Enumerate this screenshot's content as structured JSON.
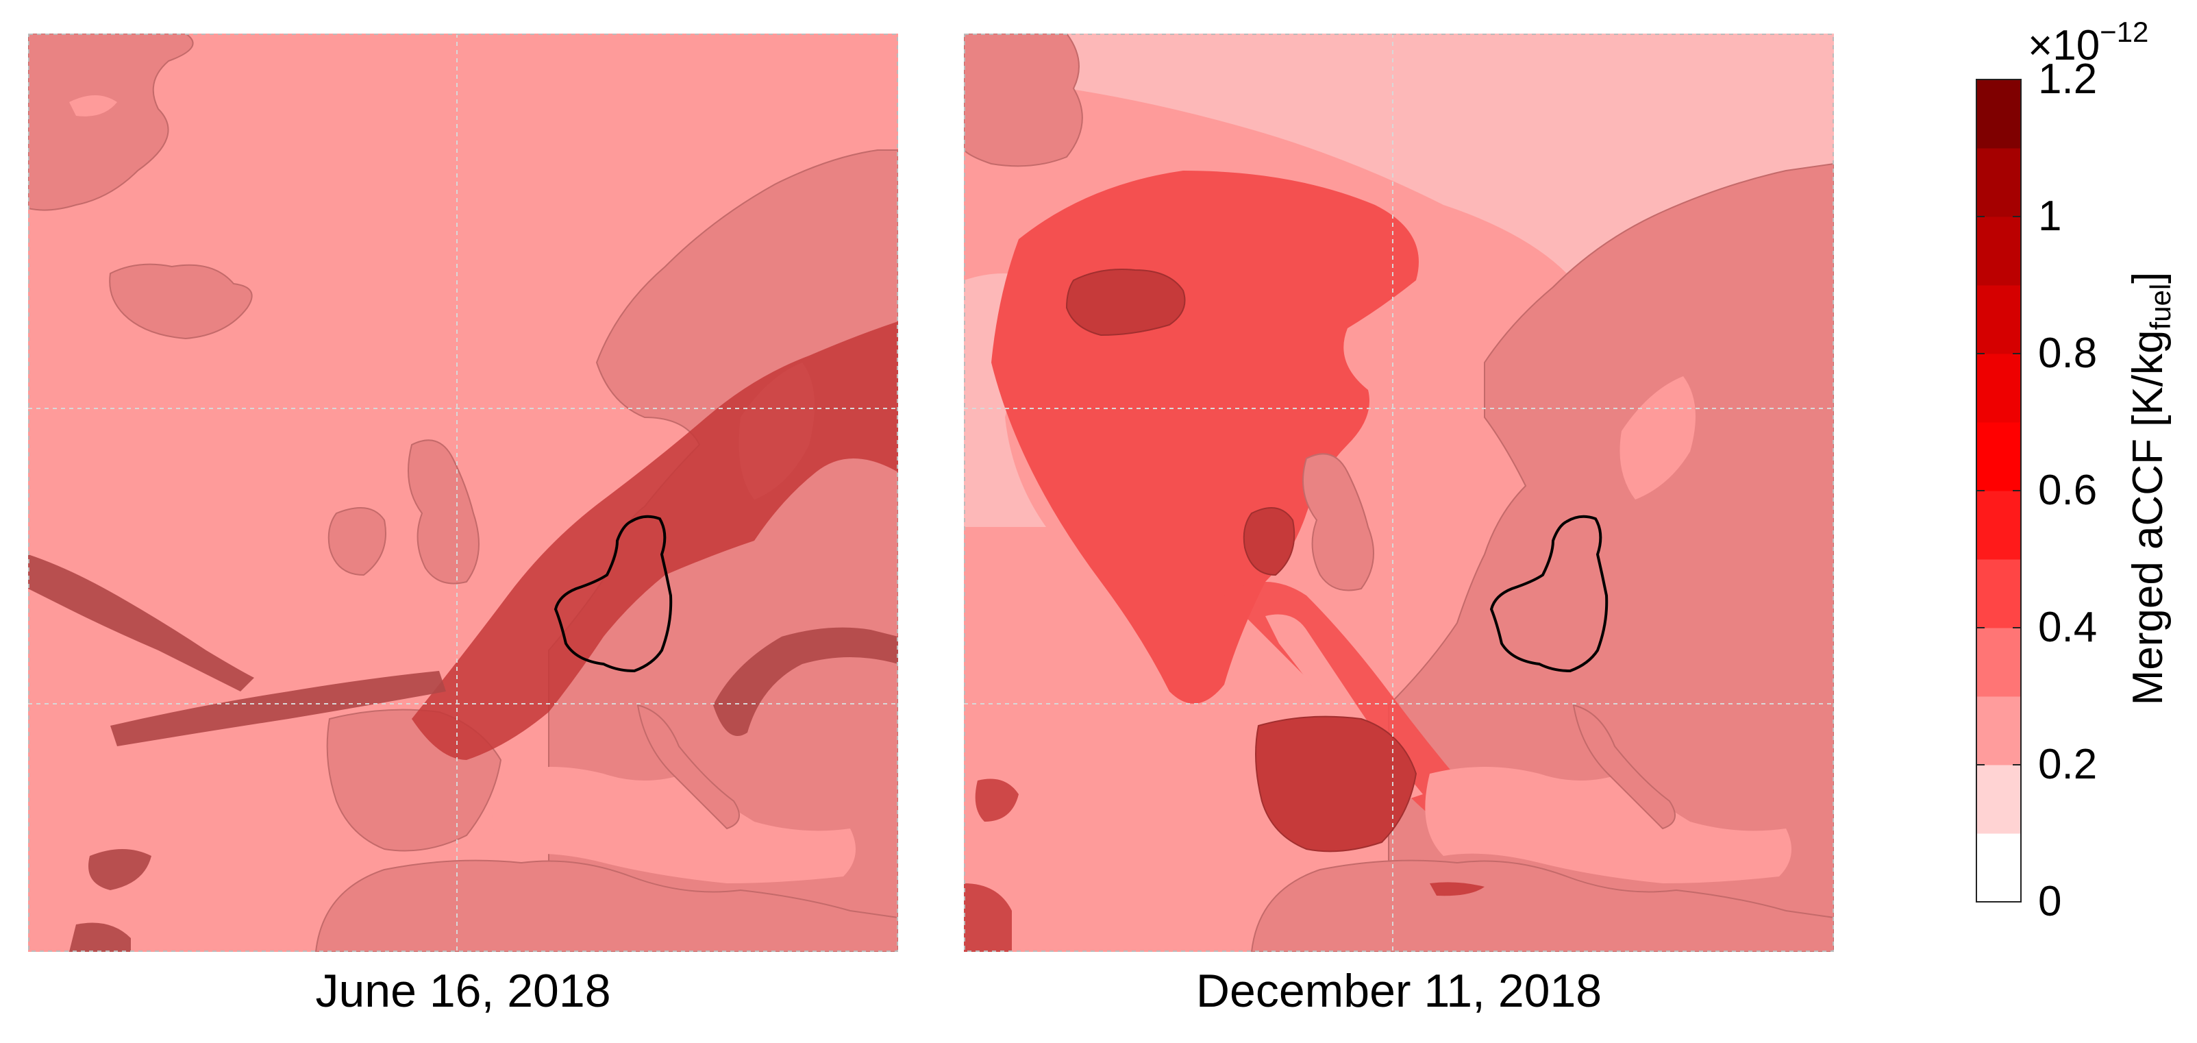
{
  "panels": [
    {
      "caption": "June 16, 2018"
    },
    {
      "caption": "December 11, 2018"
    }
  ],
  "colorbar": {
    "title_main": "Merged aCCF [K/kg",
    "title_sub": "fuel",
    "title_end": "]",
    "exponent_base": "×10",
    "exponent_power": "−12",
    "ticks": [
      "1.2",
      "1",
      "0.8",
      "0.6",
      "0.4",
      "0.2",
      "0"
    ],
    "range": [
      0,
      1.2
    ],
    "levels": [
      0,
      0.1,
      0.2,
      0.3,
      0.4,
      0.5,
      0.6,
      0.7,
      0.8,
      0.9,
      1.0,
      1.1,
      1.2
    ],
    "colors": [
      "#ffffff",
      "#ffd3d3",
      "#ff9c9c",
      "#ff7575",
      "#ff4545",
      "#ff1a1a",
      "#ff0000",
      "#ee0000",
      "#d50000",
      "#bb0000",
      "#a50000",
      "#7f0000"
    ]
  },
  "palette": {
    "sea_low": "#fe9b9a",
    "land": "#e98383",
    "very_low": "#fdb8b8",
    "medium": "#f45050",
    "high": "#c63a3a",
    "dark": "#b04747",
    "grid": "#d8d8d8",
    "outline": "#000000"
  }
}
